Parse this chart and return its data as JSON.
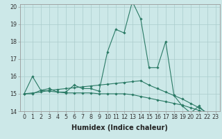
{
  "xlabel": "Humidex (Indice chaleur)",
  "x": [
    0,
    1,
    2,
    3,
    4,
    5,
    6,
    7,
    8,
    9,
    10,
    11,
    12,
    13,
    14,
    15,
    16,
    17,
    18,
    19,
    20,
    21,
    22,
    23
  ],
  "line1": [
    15.0,
    16.0,
    15.2,
    15.3,
    15.1,
    15.1,
    15.5,
    15.3,
    15.3,
    15.15,
    17.4,
    18.7,
    18.5,
    20.3,
    19.3,
    16.5,
    16.5,
    18.0,
    14.9,
    14.3,
    13.9,
    14.3,
    13.8,
    null
  ],
  "line2": [
    15.0,
    15.0,
    15.2,
    15.15,
    15.1,
    15.05,
    15.05,
    15.05,
    15.05,
    15.0,
    15.0,
    15.0,
    15.0,
    14.95,
    14.85,
    14.75,
    14.65,
    14.55,
    14.45,
    14.35,
    14.2,
    14.05,
    13.85,
    13.75
  ],
  "line3": [
    15.0,
    15.05,
    15.1,
    15.2,
    15.25,
    15.3,
    15.35,
    15.4,
    15.45,
    15.5,
    15.55,
    15.6,
    15.65,
    15.7,
    15.75,
    15.5,
    15.3,
    15.1,
    14.9,
    14.7,
    14.45,
    14.2,
    13.9,
    13.7
  ],
  "line_color": "#2a7a65",
  "bg_color": "#cce8e8",
  "grid_color": "#aacccc",
  "ylim": [
    14,
    20
  ],
  "xlim": [
    -0.5,
    23.5
  ],
  "yticks": [
    14,
    15,
    16,
    17,
    18,
    19,
    20
  ],
  "xticks": [
    0,
    1,
    2,
    3,
    4,
    5,
    6,
    7,
    8,
    9,
    10,
    11,
    12,
    13,
    14,
    15,
    16,
    17,
    18,
    19,
    20,
    21,
    22,
    23
  ],
  "tick_fontsize": 5.8,
  "label_fontsize": 7.0
}
